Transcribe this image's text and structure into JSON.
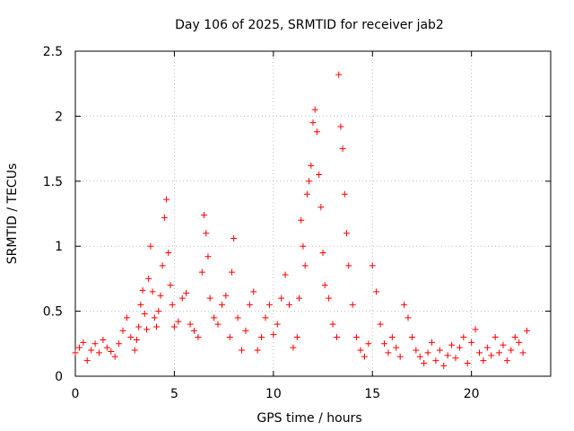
{
  "chart_data": {
    "type": "scatter",
    "title": "Day 106 of 2025, SRMTID for receiver jab2",
    "xlabel": "GPS time / hours",
    "ylabel": "SRMTID / TECUs",
    "xlim": [
      0,
      24
    ],
    "ylim": [
      0,
      2.5
    ],
    "x_ticks": [
      0,
      5,
      10,
      15,
      20
    ],
    "x_tick_labels": [
      "0",
      "5",
      "10",
      "15",
      "20"
    ],
    "y_ticks": [
      0,
      0.5,
      1,
      1.5,
      2,
      2.5
    ],
    "y_tick_labels": [
      "0",
      "0.5",
      "1",
      "1.5",
      "2",
      "2.5"
    ],
    "grid": true,
    "marker": "+",
    "series": [
      {
        "name": "SRMTID",
        "color": "#ff0000",
        "x": [
          0.0,
          0.2,
          0.4,
          0.6,
          0.8,
          1.0,
          1.2,
          1.4,
          1.6,
          1.8,
          2.0,
          2.2,
          2.4,
          2.6,
          2.8,
          3.0,
          3.1,
          3.2,
          3.3,
          3.4,
          3.5,
          3.6,
          3.7,
          3.8,
          3.9,
          4.0,
          4.1,
          4.2,
          4.3,
          4.4,
          4.5,
          4.6,
          4.7,
          4.8,
          4.9,
          5.0,
          5.2,
          5.4,
          5.6,
          5.8,
          6.0,
          6.2,
          6.4,
          6.5,
          6.6,
          6.7,
          6.8,
          7.0,
          7.2,
          7.4,
          7.6,
          7.8,
          7.9,
          8.0,
          8.2,
          8.4,
          8.6,
          8.8,
          9.0,
          9.2,
          9.4,
          9.6,
          9.8,
          10.0,
          10.2,
          10.4,
          10.6,
          10.8,
          11.0,
          11.2,
          11.3,
          11.4,
          11.5,
          11.6,
          11.7,
          11.8,
          11.9,
          12.0,
          12.1,
          12.2,
          12.3,
          12.4,
          12.5,
          12.6,
          12.8,
          13.0,
          13.2,
          13.3,
          13.4,
          13.5,
          13.6,
          13.7,
          13.8,
          14.0,
          14.2,
          14.4,
          14.6,
          14.8,
          15.0,
          15.2,
          15.4,
          15.6,
          15.8,
          16.0,
          16.2,
          16.4,
          16.6,
          16.8,
          17.0,
          17.2,
          17.4,
          17.6,
          17.8,
          18.0,
          18.2,
          18.4,
          18.6,
          18.8,
          19.0,
          19.2,
          19.4,
          19.6,
          19.8,
          20.0,
          20.2,
          20.4,
          20.6,
          20.8,
          21.0,
          21.2,
          21.4,
          21.6,
          21.8,
          22.0,
          22.2,
          22.4,
          22.6,
          22.8
        ],
        "y": [
          0.18,
          0.22,
          0.26,
          0.12,
          0.2,
          0.25,
          0.18,
          0.28,
          0.22,
          0.19,
          0.15,
          0.25,
          0.35,
          0.45,
          0.3,
          0.2,
          0.28,
          0.38,
          0.55,
          0.66,
          0.48,
          0.36,
          0.75,
          1.0,
          0.65,
          0.45,
          0.38,
          0.5,
          0.62,
          0.85,
          1.22,
          1.36,
          0.95,
          0.7,
          0.55,
          0.38,
          0.42,
          0.6,
          0.64,
          0.4,
          0.35,
          0.3,
          0.8,
          1.24,
          1.1,
          0.92,
          0.6,
          0.45,
          0.4,
          0.55,
          0.62,
          0.3,
          0.8,
          1.06,
          0.45,
          0.2,
          0.35,
          0.55,
          0.65,
          0.2,
          0.3,
          0.45,
          0.55,
          0.32,
          0.4,
          0.6,
          0.78,
          0.55,
          0.22,
          0.3,
          0.6,
          1.2,
          1.0,
          0.85,
          1.4,
          1.5,
          1.62,
          1.95,
          2.05,
          1.88,
          1.55,
          1.3,
          0.95,
          0.7,
          0.6,
          0.4,
          0.3,
          2.32,
          1.92,
          1.75,
          1.4,
          1.1,
          0.85,
          0.55,
          0.3,
          0.2,
          0.15,
          0.25,
          0.85,
          0.65,
          0.4,
          0.25,
          0.18,
          0.3,
          0.22,
          0.15,
          0.55,
          0.45,
          0.3,
          0.2,
          0.15,
          0.1,
          0.18,
          0.26,
          0.12,
          0.2,
          0.08,
          0.16,
          0.24,
          0.14,
          0.22,
          0.3,
          0.1,
          0.26,
          0.36,
          0.18,
          0.12,
          0.22,
          0.16,
          0.3,
          0.18,
          0.24,
          0.12,
          0.2,
          0.3,
          0.26,
          0.18,
          0.35
        ]
      }
    ]
  }
}
